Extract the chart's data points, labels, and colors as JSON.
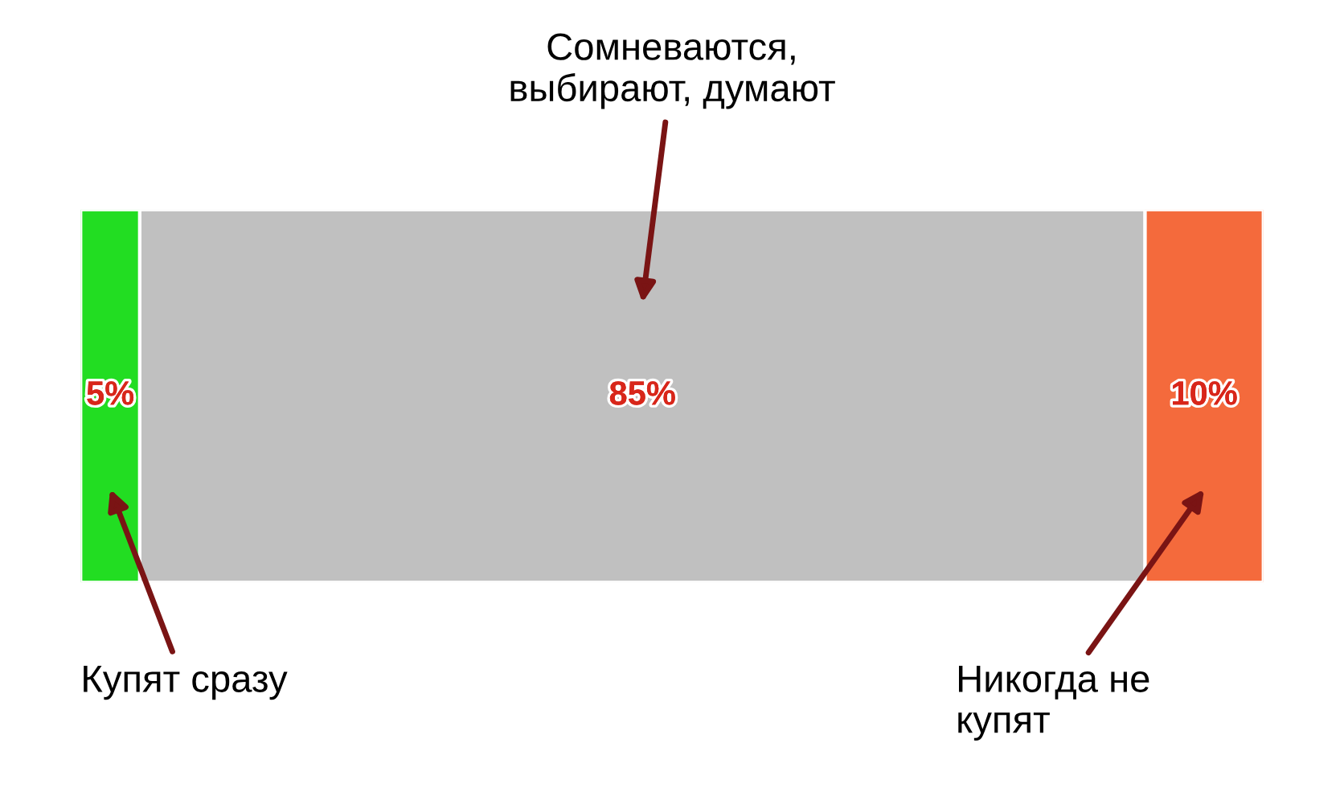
{
  "chart_data": {
    "type": "bar",
    "orientation": "horizontal",
    "stacked": true,
    "categories": [
      null
    ],
    "xlim": [
      0,
      100
    ],
    "series": [
      {
        "name": "Купят сразу",
        "color": "#22dd22",
        "values": [
          5
        ],
        "value_labels": [
          "5%"
        ]
      },
      {
        "name": "Сомневаются,\nвыбирают, думают",
        "color": "#c0c0c0",
        "values": [
          85
        ],
        "value_labels": [
          "85%"
        ]
      },
      {
        "name": "Никогда не\nкупят",
        "color": "#f46a3c",
        "values": [
          10
        ],
        "value_labels": [
          "10%"
        ]
      }
    ]
  }
}
